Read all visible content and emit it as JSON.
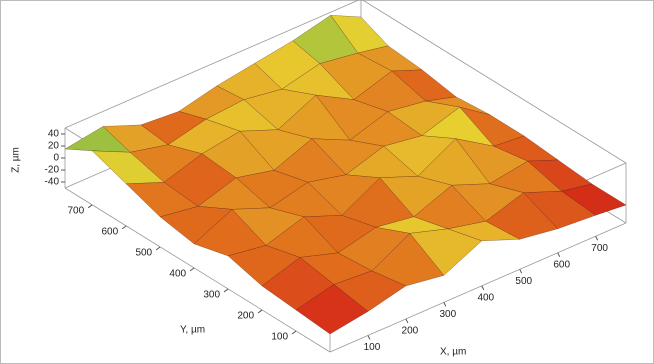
{
  "chart_data": {
    "type": "surface",
    "xlabel": "X, µm",
    "ylabel": "Y, µm",
    "zlabel": "Z, µm",
    "x": [
      0,
      100,
      200,
      300,
      400,
      500,
      600,
      700,
      780
    ],
    "y": [
      0,
      100,
      200,
      300,
      400,
      500,
      600,
      700,
      780
    ],
    "z": [
      [
        -20,
        -10,
        5,
        -5,
        25,
        0,
        -10,
        -15,
        -20
      ],
      [
        -15,
        0,
        -5,
        30,
        10,
        -5,
        15,
        -10,
        -20
      ],
      [
        -10,
        10,
        -10,
        5,
        -5,
        20,
        -5,
        5,
        -15
      ],
      [
        5,
        -5,
        15,
        -10,
        25,
        0,
        35,
        -5,
        -10
      ],
      [
        -10,
        20,
        -5,
        10,
        -5,
        15,
        5,
        25,
        -10
      ],
      [
        0,
        -10,
        10,
        -5,
        20,
        -10,
        10,
        0,
        -15
      ],
      [
        20,
        -5,
        15,
        25,
        0,
        30,
        -5,
        15,
        -5
      ],
      [
        40,
        10,
        -5,
        10,
        15,
        5,
        20,
        10,
        0
      ],
      [
        15,
        25,
        0,
        -5,
        10,
        20,
        30,
        45,
        20
      ]
    ],
    "xlim": [
      0,
      780
    ],
    "ylim": [
      0,
      780
    ],
    "zlim": [
      -50,
      50
    ],
    "xticks": [
      100,
      200,
      300,
      400,
      500,
      600,
      700
    ],
    "yticks": [
      100,
      200,
      300,
      400,
      500,
      600,
      700
    ],
    "zticks": [
      -40,
      -20,
      0,
      20,
      40
    ],
    "colormap": [
      "#4a0808",
      "#a01414",
      "#d42a18",
      "#e06a1c",
      "#e8d030",
      "#50b050",
      "#3050c0"
    ]
  }
}
